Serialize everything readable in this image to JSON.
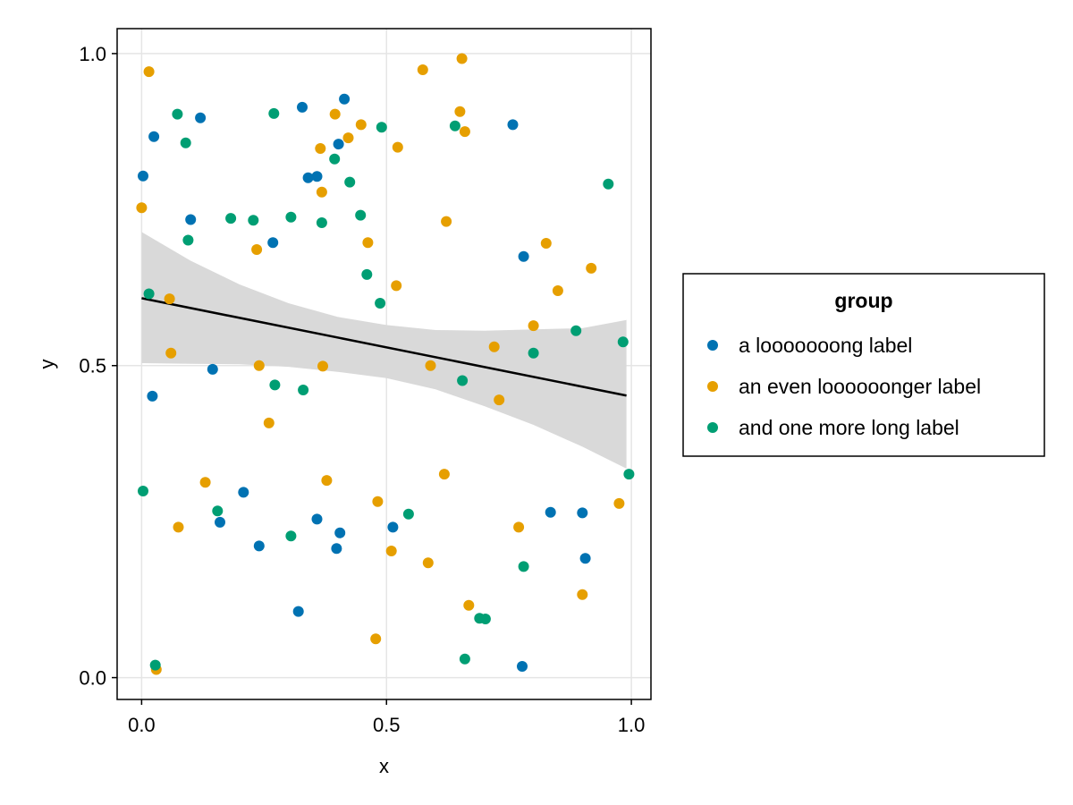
{
  "chart_data": {
    "type": "scatter",
    "xlabel": "x",
    "ylabel": "y",
    "xlim": [
      -0.05,
      1.04
    ],
    "ylim": [
      -0.035,
      1.04
    ],
    "xticks": [
      0.0,
      0.5,
      1.0
    ],
    "yticks": [
      0.0,
      0.5,
      1.0
    ],
    "xtick_labels": [
      "0.0",
      "0.5",
      "1.0"
    ],
    "ytick_labels": [
      "0.0",
      "0.5",
      "1.0"
    ],
    "grid": true,
    "legend": {
      "title": "group",
      "placement": "right",
      "entries": [
        "a looooooong label",
        "an even loooooonger label",
        "and one more long label"
      ]
    },
    "series": [
      {
        "name": "a looooooong label",
        "color": "#0072B2",
        "points": [
          [
            0.003,
            0.804
          ],
          [
            0.025,
            0.867
          ],
          [
            0.022,
            0.451
          ],
          [
            0.12,
            0.897
          ],
          [
            0.1,
            0.734
          ],
          [
            0.145,
            0.494
          ],
          [
            0.16,
            0.249
          ],
          [
            0.208,
            0.297
          ],
          [
            0.24,
            0.211
          ],
          [
            0.268,
            0.697
          ],
          [
            0.328,
            0.914
          ],
          [
            0.34,
            0.801
          ],
          [
            0.358,
            0.803
          ],
          [
            0.358,
            0.254
          ],
          [
            0.32,
            0.106
          ],
          [
            0.398,
            0.207
          ],
          [
            0.402,
            0.855
          ],
          [
            0.405,
            0.232
          ],
          [
            0.414,
            0.927
          ],
          [
            0.513,
            0.241
          ],
          [
            0.758,
            0.886
          ],
          [
            0.78,
            0.675
          ],
          [
            0.777,
            0.018
          ],
          [
            0.835,
            0.265
          ],
          [
            0.9,
            0.264
          ],
          [
            0.906,
            0.191
          ]
        ]
      },
      {
        "name": "an even loooooonger label",
        "color": "#E69F00",
        "points": [
          [
            0.0,
            0.753
          ],
          [
            0.015,
            0.971
          ],
          [
            0.03,
            0.013
          ],
          [
            0.057,
            0.607
          ],
          [
            0.06,
            0.52
          ],
          [
            0.075,
            0.241
          ],
          [
            0.13,
            0.313
          ],
          [
            0.235,
            0.686
          ],
          [
            0.24,
            0.5
          ],
          [
            0.26,
            0.408
          ],
          [
            0.365,
            0.848
          ],
          [
            0.368,
            0.778
          ],
          [
            0.37,
            0.499
          ],
          [
            0.378,
            0.316
          ],
          [
            0.395,
            0.903
          ],
          [
            0.422,
            0.865
          ],
          [
            0.448,
            0.886
          ],
          [
            0.462,
            0.697
          ],
          [
            0.478,
            0.062
          ],
          [
            0.482,
            0.282
          ],
          [
            0.51,
            0.203
          ],
          [
            0.52,
            0.628
          ],
          [
            0.523,
            0.85
          ],
          [
            0.574,
            0.974
          ],
          [
            0.585,
            0.184
          ],
          [
            0.59,
            0.5
          ],
          [
            0.618,
            0.326
          ],
          [
            0.622,
            0.731
          ],
          [
            0.65,
            0.907
          ],
          [
            0.654,
            0.992
          ],
          [
            0.66,
            0.875
          ],
          [
            0.668,
            0.116
          ],
          [
            0.72,
            0.53
          ],
          [
            0.73,
            0.445
          ],
          [
            0.77,
            0.241
          ],
          [
            0.8,
            0.564
          ],
          [
            0.826,
            0.696
          ],
          [
            0.85,
            0.62
          ],
          [
            0.9,
            0.133
          ],
          [
            0.918,
            0.656
          ],
          [
            0.975,
            0.279
          ]
        ]
      },
      {
        "name": "and one more long label",
        "color": "#009E73",
        "points": [
          [
            0.003,
            0.299
          ],
          [
            0.015,
            0.615
          ],
          [
            0.028,
            0.02
          ],
          [
            0.073,
            0.903
          ],
          [
            0.09,
            0.857
          ],
          [
            0.095,
            0.701
          ],
          [
            0.155,
            0.267
          ],
          [
            0.182,
            0.736
          ],
          [
            0.228,
            0.733
          ],
          [
            0.27,
            0.904
          ],
          [
            0.272,
            0.469
          ],
          [
            0.305,
            0.227
          ],
          [
            0.305,
            0.738
          ],
          [
            0.33,
            0.461
          ],
          [
            0.368,
            0.729
          ],
          [
            0.394,
            0.831
          ],
          [
            0.425,
            0.794
          ],
          [
            0.447,
            0.741
          ],
          [
            0.46,
            0.646
          ],
          [
            0.487,
            0.6
          ],
          [
            0.49,
            0.882
          ],
          [
            0.545,
            0.262
          ],
          [
            0.64,
            0.884
          ],
          [
            0.655,
            0.476
          ],
          [
            0.66,
            0.03
          ],
          [
            0.69,
            0.095
          ],
          [
            0.702,
            0.094
          ],
          [
            0.78,
            0.178
          ],
          [
            0.8,
            0.52
          ],
          [
            0.887,
            0.556
          ],
          [
            0.953,
            0.791
          ],
          [
            0.983,
            0.538
          ],
          [
            0.995,
            0.326
          ]
        ]
      }
    ],
    "trend_line": {
      "color": "#000000",
      "start": [
        0.0,
        0.608
      ],
      "end": [
        0.99,
        0.452
      ]
    },
    "confidence_band": {
      "color": "#D9D9D9",
      "x": [
        0.0,
        0.1,
        0.2,
        0.3,
        0.4,
        0.5,
        0.6,
        0.7,
        0.8,
        0.9,
        0.99
      ],
      "upper": [
        0.714,
        0.668,
        0.63,
        0.6,
        0.578,
        0.565,
        0.557,
        0.556,
        0.558,
        0.56,
        0.573
      ],
      "lower": [
        0.504,
        0.503,
        0.502,
        0.498,
        0.49,
        0.48,
        0.462,
        0.435,
        0.405,
        0.37,
        0.335
      ]
    }
  }
}
